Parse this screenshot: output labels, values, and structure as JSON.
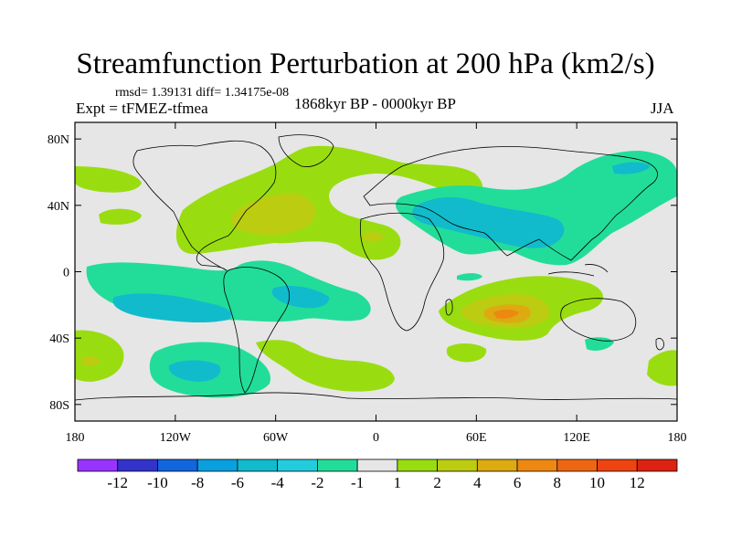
{
  "title": "Streamfunction Perturbation at 200 hPa (km2/s)",
  "stats_text": "rmsd= 1.39131 diff= 1.34175e-08",
  "left_label": "Expt = tFMEZ-tfmea",
  "center_label": "1868kyr BP - 0000kyr BP",
  "right_label": "JJA",
  "chart_data": {
    "type": "contour-map",
    "title": "Streamfunction Perturbation at 200 hPa (km2/s)",
    "units": "km2/s",
    "x_range": [
      -180,
      180
    ],
    "y_range": [
      -90,
      90
    ],
    "x_ticks": [
      {
        "value": -180,
        "label": "180"
      },
      {
        "value": -120,
        "label": "120W"
      },
      {
        "value": -60,
        "label": "60W"
      },
      {
        "value": 0,
        "label": "0"
      },
      {
        "value": 60,
        "label": "60E"
      },
      {
        "value": 120,
        "label": "120E"
      },
      {
        "value": 180,
        "label": "180"
      }
    ],
    "y_ticks": [
      {
        "value": 80,
        "label": "80N"
      },
      {
        "value": 40,
        "label": "40N"
      },
      {
        "value": 0,
        "label": "0"
      },
      {
        "value": -40,
        "label": "40S"
      },
      {
        "value": -80,
        "label": "80S"
      }
    ],
    "colorbar": {
      "labels": [
        "-12",
        "-10",
        "-8",
        "-6",
        "-4",
        "-2",
        "-1",
        "1",
        "2",
        "4",
        "6",
        "8",
        "10",
        "12"
      ],
      "colors": [
        "#9933ff",
        "#3333cc",
        "#1166dd",
        "#0aa0e0",
        "#11bbcc",
        "#22ccdd",
        "#22dd99",
        "#e6e6e6",
        "#99dd11",
        "#bbcc11",
        "#ddaa11",
        "#ee8811",
        "#ee6611",
        "#ee4411",
        "#dd2211"
      ]
    },
    "regions": [
      {
        "name": "north-atlantic-positive",
        "level": "2",
        "lon": -60,
        "lat": 40
      },
      {
        "name": "north-atlantic-core",
        "level": "4",
        "lon": -55,
        "lat": 38
      },
      {
        "name": "south-indian-ocean-max",
        "level": "6",
        "lon": 75,
        "lat": -25
      },
      {
        "name": "asia-negative",
        "level": "-2",
        "lon": 80,
        "lat": 30
      },
      {
        "name": "south-pacific-negative",
        "level": "-2",
        "lon": -110,
        "lat": -70
      },
      {
        "name": "south-pacific-west-positive",
        "level": "4",
        "lon": -170,
        "lat": -55
      }
    ]
  }
}
